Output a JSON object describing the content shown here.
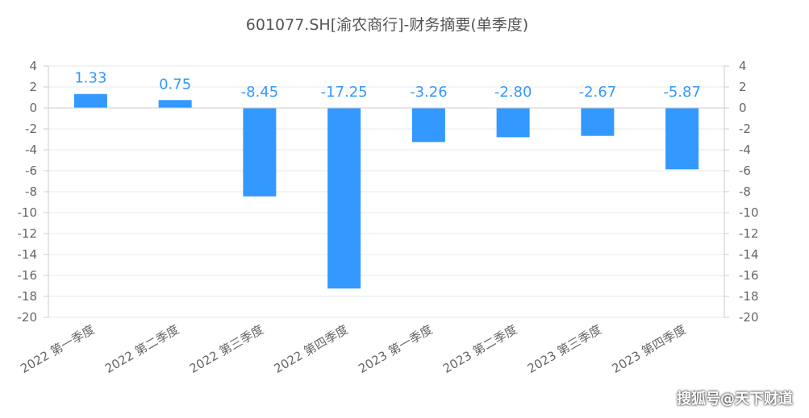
{
  "title": "601077.SH[渝农商行]-财务摘要(单季度)",
  "watermark": "搜狐号@天下财道",
  "colors": {
    "bar": "#3399ff",
    "label": "#3399ff",
    "grid": "#e8e8e8",
    "axis": "#cccccc",
    "text": "#666666"
  },
  "chart_data": {
    "type": "bar",
    "title": "601077.SH[渝农商行]-财务摘要(单季度)",
    "categories": [
      "2022 第一季度",
      "2022 第二季度",
      "2022 第三季度",
      "2022 第四季度",
      "2023 第一季度",
      "2023 第二季度",
      "2023 第三季度",
      "2023 第四季度"
    ],
    "values": [
      1.33,
      0.75,
      -8.45,
      -17.25,
      -3.26,
      -2.8,
      -2.67,
      -5.87
    ],
    "value_labels": [
      "1.33",
      "0.75",
      "-8.45",
      "-17.25",
      "-3.26",
      "-2.80",
      "-2.67",
      "-5.87"
    ],
    "ylim": [
      -20,
      4
    ],
    "yticks": [
      4,
      2,
      0,
      -2,
      -4,
      -6,
      -8,
      -10,
      -12,
      -14,
      -16,
      -18,
      -20
    ],
    "ytick_labels": [
      "4",
      "2",
      "0",
      "-2",
      "-4",
      "-6",
      "-8",
      "-10",
      "-12",
      "-14",
      "-16",
      "-18",
      "-20"
    ],
    "grid": true,
    "dual_y_axis": true
  }
}
